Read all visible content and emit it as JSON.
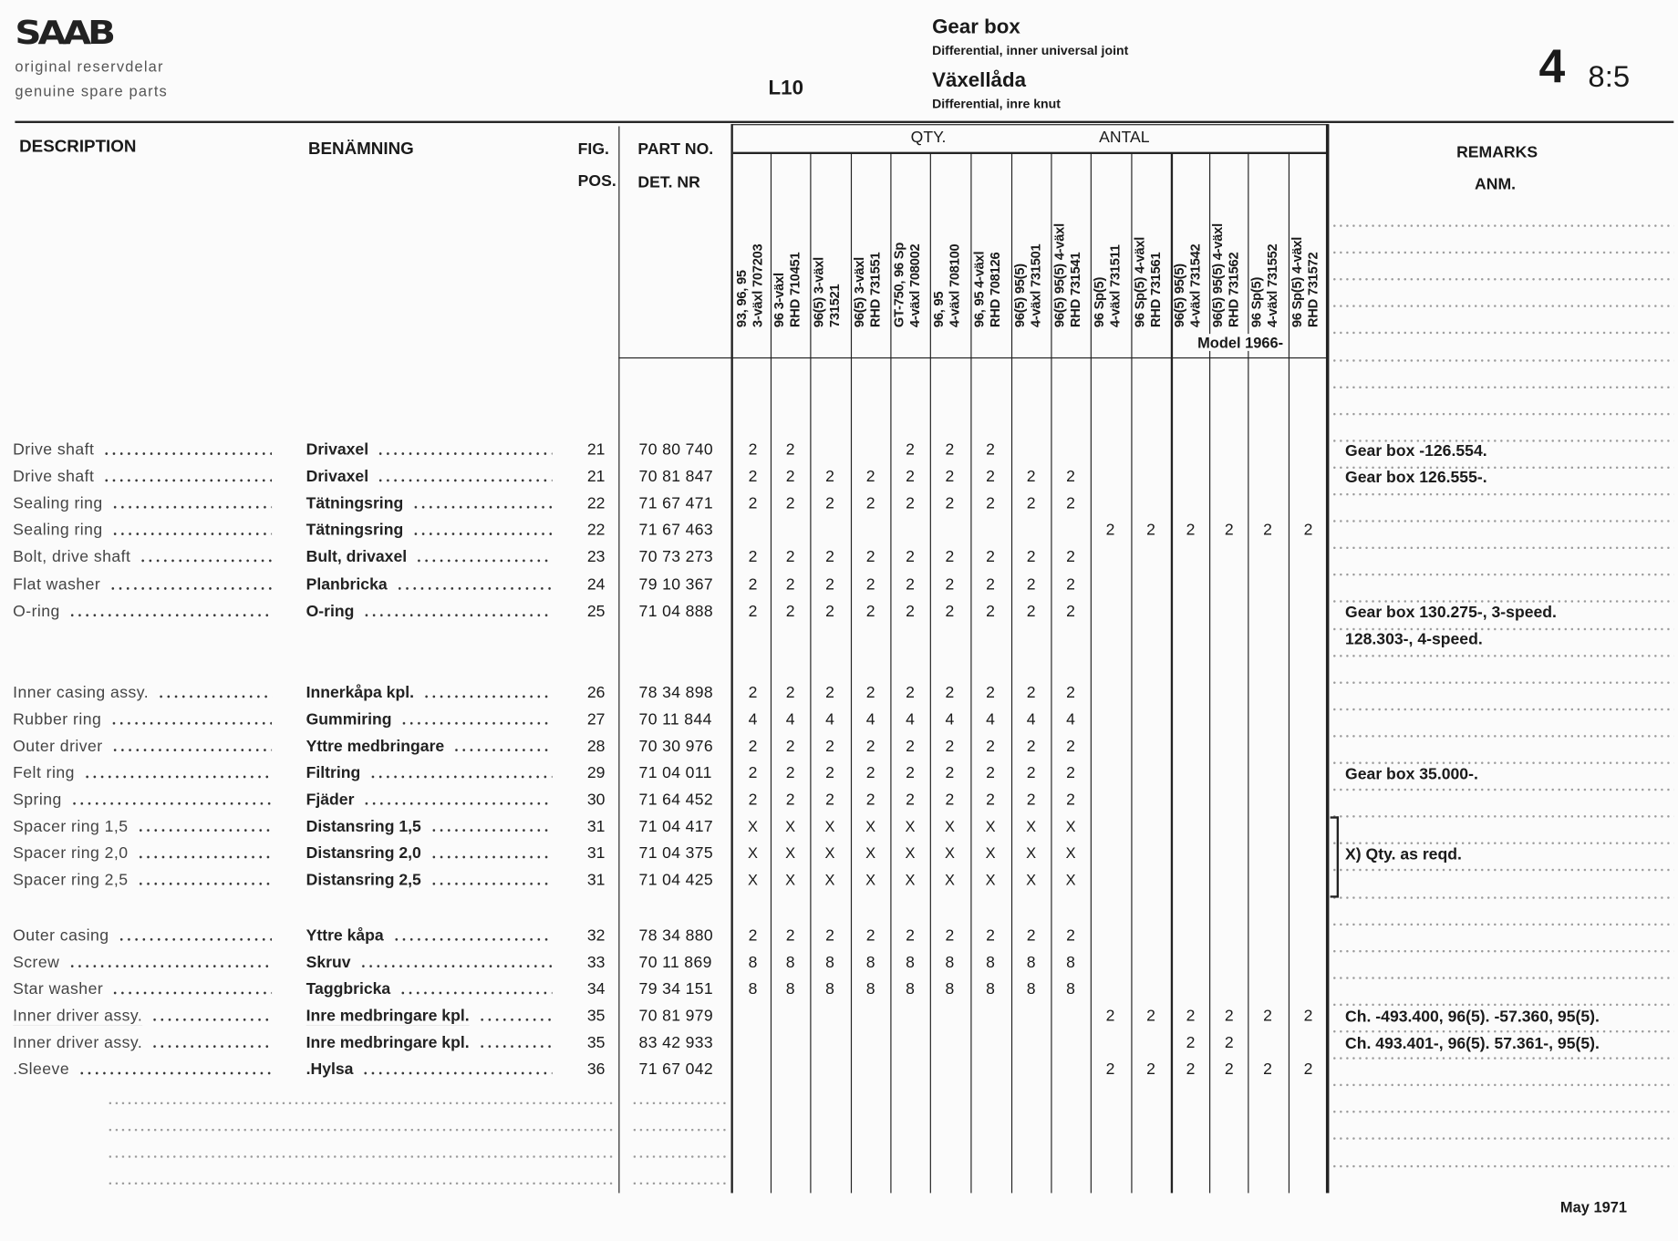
{
  "header": {
    "brand": "SAAB",
    "tagline_sv": "original reservdelar",
    "tagline_en": "genuine spare parts",
    "model": "L10",
    "title_en": "Gear box",
    "subtitle_en": "Differential, inner universal joint",
    "title_sv": "Växellåda",
    "subtitle_sv": "Differential, inre knut",
    "group_number": "4",
    "page_ref": "8:5"
  },
  "columns": {
    "description": "DESCRIPTION",
    "benamning": "BENÄMNING",
    "fig": "FIG.",
    "pos": "POS.",
    "part_no": "PART NO.",
    "det_nr": "DET. NR",
    "qty": "QTY.",
    "antal": "ANTAL",
    "remarks": "REMARKS",
    "anm": "ANM.",
    "model_note": "Model 1966-",
    "qty_columns": [
      [
        "93, 96, 95",
        "3-växl 707203"
      ],
      [
        "96 3-växl",
        "RHD 710451"
      ],
      [
        "96(5) 3-växl",
        "731521"
      ],
      [
        "96(5) 3-växl",
        "RHD 731551"
      ],
      [
        "GT-750, 96 Sp",
        "4-växl 708002"
      ],
      [
        "96, 95",
        "4-växl 708100"
      ],
      [
        "96, 95 4-växl",
        "RHD 708126"
      ],
      [
        "96(5) 95(5)",
        "4-växl 731501"
      ],
      [
        "96(5) 95(5) 4-växl",
        "RHD 731541"
      ],
      [
        "96 Sp(5)",
        "4-växl 731511"
      ],
      [
        "96 Sp(5) 4-växl",
        "RHD 731561"
      ],
      [
        "96(5) 95(5)",
        "4-växl 731542"
      ],
      [
        "96(5) 95(5) 4-växl",
        "RHD 731562"
      ],
      [
        "96 Sp(5)",
        "4-växl 731552"
      ],
      [
        "96 Sp(5) 4-växl",
        "RHD 731572"
      ]
    ]
  },
  "groups": [
    [
      {
        "desc": "Drive shaft",
        "ben": "Drivaxel",
        "pos": "21",
        "part": "70 80 740",
        "qty": [
          "2",
          "2",
          "",
          "",
          "2",
          "2",
          "2",
          "",
          "",
          "",
          "",
          "",
          "",
          "",
          ""
        ],
        "remark": [
          "Gear box -126.554."
        ]
      },
      {
        "desc": "Drive shaft",
        "ben": "Drivaxel",
        "pos": "21",
        "part": "70 81 847",
        "qty": [
          "2",
          "2",
          "2",
          "2",
          "2",
          "2",
          "2",
          "2",
          "2",
          "",
          "",
          "",
          "",
          "",
          ""
        ],
        "remark": [
          "Gear box 126.555-."
        ]
      },
      {
        "desc": "Sealing ring",
        "ben": "Tätningsring",
        "pos": "22",
        "part": "71 67 471",
        "qty": [
          "2",
          "2",
          "2",
          "2",
          "2",
          "2",
          "2",
          "2",
          "2",
          "",
          "",
          "",
          "",
          "",
          ""
        ]
      },
      {
        "desc": "Sealing ring",
        "ben": "Tätningsring",
        "pos": "22",
        "part": "71 67 463",
        "qty": [
          "",
          "",
          "",
          "",
          "",
          "",
          "",
          "",
          "",
          "2",
          "2",
          "2",
          "2",
          "2",
          "2"
        ]
      },
      {
        "desc": "Bolt, drive shaft",
        "ben": "Bult, drivaxel",
        "pos": "23",
        "part": "70 73 273",
        "qty": [
          "2",
          "2",
          "2",
          "2",
          "2",
          "2",
          "2",
          "2",
          "2",
          "",
          "",
          "",
          "",
          "",
          ""
        ]
      },
      {
        "desc": "Flat washer",
        "ben": "Planbricka",
        "pos": "24",
        "part": "79 10 367",
        "qty": [
          "2",
          "2",
          "2",
          "2",
          "2",
          "2",
          "2",
          "2",
          "2",
          "",
          "",
          "",
          "",
          "",
          ""
        ]
      },
      {
        "desc": "O-ring",
        "ben": "O-ring",
        "pos": "25",
        "part": "71 04 888",
        "qty": [
          "2",
          "2",
          "2",
          "2",
          "2",
          "2",
          "2",
          "2",
          "2",
          "",
          "",
          "",
          "",
          "",
          ""
        ],
        "remark": [
          "Gear box 130.275-, 3-speed.",
          "128.303-, 4-speed."
        ]
      }
    ],
    [
      {
        "desc": "Inner casing assy.",
        "ben": "Innerkåpa kpl.",
        "pos": "26",
        "part": "78 34 898",
        "qty": [
          "2",
          "2",
          "2",
          "2",
          "2",
          "2",
          "2",
          "2",
          "2",
          "",
          "",
          "",
          "",
          "",
          ""
        ]
      },
      {
        "desc": "Rubber ring",
        "ben": "Gummiring",
        "pos": "27",
        "part": "70 11 844",
        "qty": [
          "4",
          "4",
          "4",
          "4",
          "4",
          "4",
          "4",
          "4",
          "4",
          "",
          "",
          "",
          "",
          "",
          ""
        ]
      },
      {
        "desc": "Outer driver",
        "ben": "Yttre medbringare",
        "pos": "28",
        "part": "70 30 976",
        "qty": [
          "2",
          "2",
          "2",
          "2",
          "2",
          "2",
          "2",
          "2",
          "2",
          "",
          "",
          "",
          "",
          "",
          ""
        ]
      },
      {
        "desc": "Felt ring",
        "ben": "Filtring",
        "pos": "29",
        "part": "71 04 011",
        "qty": [
          "2",
          "2",
          "2",
          "2",
          "2",
          "2",
          "2",
          "2",
          "2",
          "",
          "",
          "",
          "",
          "",
          ""
        ],
        "remark": [
          "Gear box 35.000-."
        ]
      },
      {
        "desc": "Spring",
        "ben": "Fjäder",
        "pos": "30",
        "part": "71 64 452",
        "qty": [
          "2",
          "2",
          "2",
          "2",
          "2",
          "2",
          "2",
          "2",
          "2",
          "",
          "",
          "",
          "",
          "",
          ""
        ]
      },
      {
        "desc": "Spacer ring 1,5",
        "ben": "Distansring 1,5",
        "pos": "31",
        "part": "71 04 417",
        "qty": [
          "X",
          "X",
          "X",
          "X",
          "X",
          "X",
          "X",
          "X",
          "X",
          "",
          "",
          "",
          "",
          "",
          ""
        ]
      },
      {
        "desc": "Spacer ring 2,0",
        "ben": "Distansring 2,0",
        "pos": "31",
        "part": "71 04 375",
        "qty": [
          "X",
          "X",
          "X",
          "X",
          "X",
          "X",
          "X",
          "X",
          "X",
          "",
          "",
          "",
          "",
          "",
          ""
        ],
        "remark": [
          "X) Qty. as reqd."
        ]
      },
      {
        "desc": "Spacer ring 2,5",
        "ben": "Distansring 2,5",
        "pos": "31",
        "part": "71 04 425",
        "qty": [
          "X",
          "X",
          "X",
          "X",
          "X",
          "X",
          "X",
          "X",
          "X",
          "",
          "",
          "",
          "",
          "",
          ""
        ]
      }
    ],
    [
      {
        "desc": "Outer casing",
        "ben": "Yttre kåpa",
        "pos": "32",
        "part": "78 34 880",
        "qty": [
          "2",
          "2",
          "2",
          "2",
          "2",
          "2",
          "2",
          "2",
          "2",
          "",
          "",
          "",
          "",
          "",
          ""
        ]
      },
      {
        "desc": "Screw",
        "ben": "Skruv",
        "pos": "33",
        "part": "70 11 869",
        "qty": [
          "8",
          "8",
          "8",
          "8",
          "8",
          "8",
          "8",
          "8",
          "8",
          "",
          "",
          "",
          "",
          "",
          ""
        ]
      },
      {
        "desc": "Star washer",
        "ben": "Taggbricka",
        "pos": "34",
        "part": "79 34 151",
        "qty": [
          "8",
          "8",
          "8",
          "8",
          "8",
          "8",
          "8",
          "8",
          "8",
          "",
          "",
          "",
          "",
          "",
          ""
        ]
      },
      {
        "desc": "Inner driver assy.",
        "ben": "Inre medbringare kpl.",
        "pos": "35",
        "part": "70 81 979",
        "underline": true,
        "qty": [
          "",
          "",
          "",
          "",
          "",
          "",
          "",
          "",
          "",
          "2",
          "2",
          "2",
          "2",
          "2",
          "2"
        ],
        "remark": [
          "Ch. -493.400, 96(5). -57.360, 95(5)."
        ]
      },
      {
        "desc": "Inner driver assy.",
        "ben": "Inre medbringare kpl.",
        "pos": "35",
        "part": "83 42 933",
        "underline": true,
        "qty": [
          "",
          "",
          "",
          "",
          "",
          "",
          "",
          "",
          "",
          "",
          "",
          "2",
          "2",
          "",
          ""
        ],
        "remark": [
          "Ch. 493.401-, 96(5). 57.361-, 95(5)."
        ]
      },
      {
        "desc": ".Sleeve",
        "ben": ".Hylsa",
        "pos": "36",
        "part": "71 67 042",
        "qty": [
          "",
          "",
          "",
          "",
          "",
          "",
          "",
          "",
          "",
          "2",
          "2",
          "2",
          "2",
          "2",
          "2"
        ]
      }
    ]
  ],
  "footer": {
    "date": "May 1971"
  }
}
